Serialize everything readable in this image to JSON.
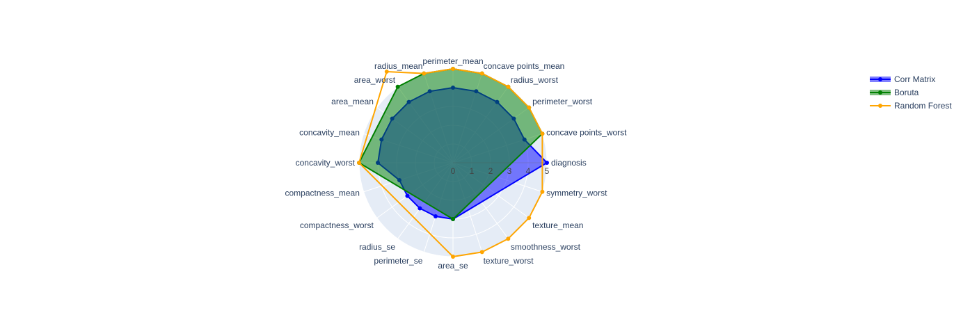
{
  "chart_data": {
    "type": "radar",
    "categories": [
      "diagnosis",
      "concave points_worst",
      "perimeter_worst",
      "radius_worst",
      "concave points_mean",
      "perimeter_mean",
      "radius_mean",
      "area_worst",
      "area_mean",
      "concavity_mean",
      "concavity_worst",
      "compactness_mean",
      "compactness_worst",
      "radius_se",
      "perimeter_se",
      "area_se",
      "texture_worst",
      "smoothness_worst",
      "texture_mean",
      "symmetry_worst"
    ],
    "radial_ticks": [
      0,
      1,
      2,
      3,
      4,
      5
    ],
    "radial_range": [
      0,
      5
    ],
    "legend_position": "top-right",
    "grid": true,
    "series": [
      {
        "name": "Corr Matrix",
        "color": "#0000ff",
        "fill_color": "rgba(0,0,255,0.5)",
        "values": [
          5,
          4,
          4,
          4,
          4,
          4,
          4,
          4,
          4,
          4,
          4,
          3,
          3,
          3,
          3,
          3,
          null,
          null,
          null,
          null
        ]
      },
      {
        "name": "Boruta",
        "color": "#008000",
        "fill_color": "rgba(0,128,0,0.5)",
        "values": [
          null,
          5,
          5,
          5,
          5,
          5,
          5,
          5,
          null,
          null,
          5,
          null,
          null,
          null,
          null,
          3,
          null,
          null,
          null,
          null
        ]
      },
      {
        "name": "Random Forest",
        "color": "#ffa500",
        "fill_color": "none",
        "values": [
          null,
          5,
          5,
          5,
          5,
          5,
          5,
          6,
          null,
          null,
          5,
          null,
          null,
          null,
          null,
          5,
          5,
          5,
          5,
          5
        ]
      }
    ]
  }
}
